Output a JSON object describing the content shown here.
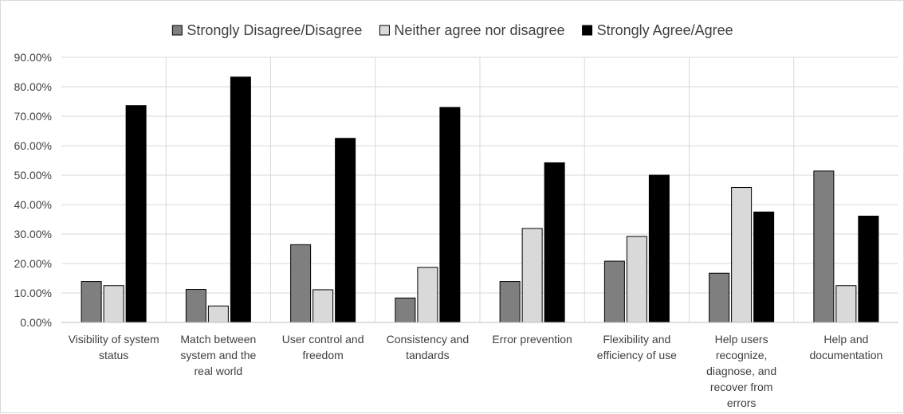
{
  "chart_data": {
    "type": "bar",
    "title": "",
    "xlabel": "",
    "ylabel": "",
    "ylim": [
      0,
      0.9
    ],
    "y_ticks": [
      0,
      0.1,
      0.2,
      0.3,
      0.4,
      0.5,
      0.6,
      0.7,
      0.8,
      0.9
    ],
    "y_tick_labels": [
      "0.00%",
      "10.00%",
      "20.00%",
      "30.00%",
      "40.00%",
      "50.00%",
      "60.00%",
      "70.00%",
      "80.00%",
      "90.00%"
    ],
    "grid": true,
    "legend_position": "top",
    "categories": [
      "Visibility of system status",
      "Match between system and the real world",
      "User control and freedom",
      "Consistency and tandards",
      "Error prevention",
      "Flexibility and efficiency of use",
      "Help users recognize, diagnose, and recover from errors",
      "Help and documentation"
    ],
    "category_label_lines": [
      [
        "Visibility of system",
        "status"
      ],
      [
        "Match between",
        "system and the",
        "real world"
      ],
      [
        "User control and",
        "freedom"
      ],
      [
        "Consistency and",
        "tandards"
      ],
      [
        "Error prevention"
      ],
      [
        "Flexibility and",
        "efficiency of use"
      ],
      [
        "Help users",
        "recognize,",
        "diagnose, and",
        "recover from",
        "errors"
      ],
      [
        "Help and",
        "documentation"
      ]
    ],
    "series": [
      {
        "name": "Strongly Disagree/Disagree",
        "color": "#7f7f7f",
        "values": [
          0.139,
          0.112,
          0.264,
          0.083,
          0.139,
          0.208,
          0.167,
          0.514
        ]
      },
      {
        "name": "Neither agree nor disagree",
        "color": "#d9d9d9",
        "values": [
          0.125,
          0.056,
          0.111,
          0.187,
          0.319,
          0.292,
          0.458,
          0.125
        ]
      },
      {
        "name": "Strongly Agree/Agree",
        "color": "#000000",
        "values": [
          0.736,
          0.833,
          0.625,
          0.73,
          0.542,
          0.5,
          0.375,
          0.361
        ]
      }
    ]
  }
}
